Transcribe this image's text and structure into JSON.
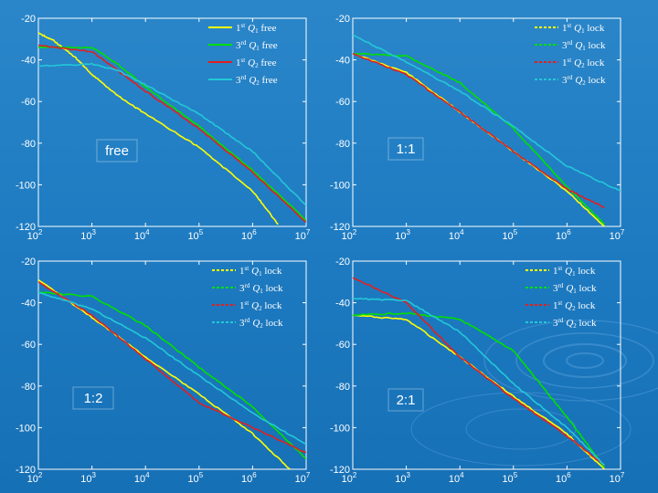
{
  "chart_data": [
    {
      "type": "line",
      "xscale": "log",
      "xlim": [
        100,
        10000000
      ],
      "ylim": [
        -120,
        -20
      ],
      "ytick_labels": [
        "-20",
        "-40",
        "-60",
        "-80",
        "-100",
        "-120"
      ],
      "yticks": [
        -20,
        -40,
        -60,
        -80,
        -100,
        -120
      ],
      "xticks": [
        {
          "base": "10",
          "exp": "2"
        },
        {
          "base": "10",
          "exp": "3"
        },
        {
          "base": "10",
          "exp": "4"
        },
        {
          "base": "10",
          "exp": "5"
        },
        {
          "base": "10",
          "exp": "6"
        },
        {
          "base": "10",
          "exp": "7"
        }
      ],
      "label": "free",
      "legend": [
        {
          "ord": "1",
          "sup": "st",
          "q": "Q",
          "sub": "1",
          "rest": " free",
          "color": "#ffff00",
          "dash": false
        },
        {
          "ord": "3",
          "sup": "rd",
          "q": "Q",
          "sub": "1",
          "rest": " free",
          "color": "#00e000",
          "dash": false
        },
        {
          "ord": "1",
          "sup": "st",
          "q": "Q",
          "sub": "2",
          "rest": " free",
          "color": "#e02020",
          "dash": false
        },
        {
          "ord": "3",
          "sup": "rd",
          "q": "Q",
          "sub": "2",
          "rest": " free",
          "color": "#22c8d8",
          "dash": false
        }
      ],
      "series": [
        {
          "name": "1st Q1 free",
          "color": "#ffff00",
          "x": [
            100,
            200,
            500,
            1000,
            3000,
            10000,
            100000,
            1000000,
            3000000
          ],
          "y": [
            -27,
            -31,
            -39,
            -47,
            -57,
            -66,
            -82,
            -103,
            -119
          ]
        },
        {
          "name": "3rd Q1 free",
          "color": "#00e000",
          "x": [
            100,
            1000,
            3000,
            10000,
            100000,
            1000000,
            10000000
          ],
          "y": [
            -34,
            -34,
            -42,
            -53,
            -72,
            -93,
            -117
          ]
        },
        {
          "name": "1st Q2 free",
          "color": "#e02020",
          "x": [
            100,
            1000,
            3000,
            10000,
            100000,
            1000000,
            10000000
          ],
          "y": [
            -33,
            -36,
            -45,
            -55,
            -73,
            -94,
            -118
          ]
        },
        {
          "name": "3rd Q2 free",
          "color": "#22c8d8",
          "x": [
            100,
            1000,
            3000,
            10000,
            100000,
            1000000,
            10000000
          ],
          "y": [
            -43,
            -42,
            -45,
            -52,
            -66,
            -84,
            -110
          ]
        }
      ]
    },
    {
      "type": "line",
      "xscale": "log",
      "xlim": [
        100,
        10000000
      ],
      "ylim": [
        -120,
        -20
      ],
      "ytick_labels": [
        "-20",
        "-40",
        "-60",
        "-80",
        "-100",
        "-120"
      ],
      "yticks": [
        -20,
        -40,
        -60,
        -80,
        -100,
        -120
      ],
      "xticks": [
        {
          "base": "10",
          "exp": "2"
        },
        {
          "base": "10",
          "exp": "3"
        },
        {
          "base": "10",
          "exp": "4"
        },
        {
          "base": "10",
          "exp": "5"
        },
        {
          "base": "10",
          "exp": "6"
        },
        {
          "base": "10",
          "exp": "7"
        }
      ],
      "label": "1:1",
      "legend": [
        {
          "ord": "1",
          "sup": "st",
          "q": "Q",
          "sub": "1",
          "rest": " lock",
          "color": "#ffff00",
          "dash": true
        },
        {
          "ord": "3",
          "sup": "rd",
          "q": "Q",
          "sub": "1",
          "rest": " lock",
          "color": "#00e000",
          "dash": true
        },
        {
          "ord": "1",
          "sup": "st",
          "q": "Q",
          "sub": "2",
          "rest": " lock",
          "color": "#e02020",
          "dash": true
        },
        {
          "ord": "3",
          "sup": "rd",
          "q": "Q",
          "sub": "2",
          "rest": " lock",
          "color": "#22c8d8",
          "dash": true
        }
      ],
      "series": [
        {
          "name": "1st Q1 lock",
          "color": "#ffff00",
          "x": [
            100,
            1000,
            10000,
            100000,
            1000000,
            5000000
          ],
          "y": [
            -37,
            -46,
            -65,
            -84,
            -103,
            -120
          ]
        },
        {
          "name": "3rd Q1 lock",
          "color": "#00e000",
          "x": [
            100,
            1000,
            10000,
            100000,
            1000000,
            5000000
          ],
          "y": [
            -37,
            -38,
            -51,
            -73,
            -101,
            -119
          ]
        },
        {
          "name": "1st Q2 lock",
          "color": "#e02020",
          "x": [
            100,
            1000,
            10000,
            100000,
            1000000,
            5000000
          ],
          "y": [
            -37,
            -47,
            -65,
            -84,
            -102,
            -111
          ]
        },
        {
          "name": "3rd Q2 lock",
          "color": "#22c8d8",
          "x": [
            100,
            1000,
            10000,
            100000,
            1000000,
            10000000
          ],
          "y": [
            -28,
            -41,
            -55,
            -72,
            -91,
            -103
          ]
        }
      ]
    },
    {
      "type": "line",
      "xscale": "log",
      "xlim": [
        100,
        10000000
      ],
      "ylim": [
        -120,
        -20
      ],
      "ytick_labels": [
        "-20",
        "-40",
        "-60",
        "-80",
        "-100",
        "-120"
      ],
      "yticks": [
        -20,
        -40,
        -60,
        -80,
        -100,
        -120
      ],
      "xticks": [
        {
          "base": "10",
          "exp": "2"
        },
        {
          "base": "10",
          "exp": "3"
        },
        {
          "base": "10",
          "exp": "4"
        },
        {
          "base": "10",
          "exp": "5"
        },
        {
          "base": "10",
          "exp": "6"
        },
        {
          "base": "10",
          "exp": "7"
        }
      ],
      "label": "1:2",
      "legend": [
        {
          "ord": "1",
          "sup": "st",
          "q": "Q",
          "sub": "1",
          "rest": " lock",
          "color": "#ffff00",
          "dash": true
        },
        {
          "ord": "3",
          "sup": "rd",
          "q": "Q",
          "sub": "1",
          "rest": " lock",
          "color": "#00e000",
          "dash": true
        },
        {
          "ord": "1",
          "sup": "st",
          "q": "Q",
          "sub": "2",
          "rest": " lock",
          "color": "#e02020",
          "dash": true
        },
        {
          "ord": "3",
          "sup": "rd",
          "q": "Q",
          "sub": "2",
          "rest": " lock",
          "color": "#22c8d8",
          "dash": true
        }
      ],
      "series": [
        {
          "name": "1st Q1 lock",
          "color": "#ffff00",
          "x": [
            100,
            1000,
            10000,
            100000,
            1000000,
            5000000
          ],
          "y": [
            -29,
            -47,
            -66,
            -84,
            -103,
            -120
          ]
        },
        {
          "name": "3rd Q1 lock",
          "color": "#00e000",
          "x": [
            100,
            1000,
            10000,
            100000,
            1000000,
            10000000
          ],
          "y": [
            -35,
            -37,
            -51,
            -71,
            -90,
            -115
          ]
        },
        {
          "name": "1st Q2 lock",
          "color": "#e02020",
          "x": [
            100,
            1000,
            10000,
            100000,
            1000000,
            10000000
          ],
          "y": [
            -30,
            -46,
            -67,
            -88,
            -100,
            -112
          ]
        },
        {
          "name": "3rd Q2 lock",
          "color": "#22c8d8",
          "x": [
            100,
            1000,
            10000,
            100000,
            1000000,
            10000000
          ],
          "y": [
            -35,
            -43,
            -57,
            -75,
            -93,
            -108
          ]
        }
      ]
    },
    {
      "type": "line",
      "xscale": "log",
      "xlim": [
        100,
        10000000
      ],
      "ylim": [
        -120,
        -20
      ],
      "ytick_labels": [
        "-20",
        "-40",
        "-60",
        "-80",
        "-100",
        "-120"
      ],
      "yticks": [
        -20,
        -40,
        -60,
        -80,
        -100,
        -120
      ],
      "xticks": [
        {
          "base": "10",
          "exp": "2"
        },
        {
          "base": "10",
          "exp": "3"
        },
        {
          "base": "10",
          "exp": "4"
        },
        {
          "base": "10",
          "exp": "5"
        },
        {
          "base": "10",
          "exp": "6"
        },
        {
          "base": "10",
          "exp": "7"
        }
      ],
      "label": "2:1",
      "legend": [
        {
          "ord": "1",
          "sup": "st",
          "q": "Q",
          "sub": "1",
          "rest": " lock",
          "color": "#ffff00",
          "dash": true
        },
        {
          "ord": "3",
          "sup": "rd",
          "q": "Q",
          "sub": "1",
          "rest": " lock",
          "color": "#00e000",
          "dash": true
        },
        {
          "ord": "1",
          "sup": "st",
          "q": "Q",
          "sub": "2",
          "rest": " lock",
          "color": "#e02020",
          "dash": true
        },
        {
          "ord": "3",
          "sup": "rd",
          "q": "Q",
          "sub": "2",
          "rest": " lock",
          "color": "#22c8d8",
          "dash": true
        }
      ],
      "series": [
        {
          "name": "1st Q1 lock",
          "color": "#ffff00",
          "x": [
            100,
            1000,
            10000,
            100000,
            1000000,
            5000000
          ],
          "y": [
            -46,
            -48,
            -66,
            -85,
            -103,
            -120
          ]
        },
        {
          "name": "3rd Q1 lock",
          "color": "#00e000",
          "x": [
            100,
            1000,
            10000,
            100000,
            1000000,
            5000000
          ],
          "y": [
            -46,
            -45,
            -48,
            -63,
            -95,
            -119
          ]
        },
        {
          "name": "1st Q2 lock",
          "color": "#e02020",
          "x": [
            100,
            1000,
            10000,
            100000,
            1000000,
            5000000
          ],
          "y": [
            -28,
            -40,
            -66,
            -86,
            -104,
            -118
          ]
        },
        {
          "name": "3rd Q2 lock",
          "color": "#22c8d8",
          "x": [
            100,
            1000,
            10000,
            100000,
            1000000,
            5000000
          ],
          "y": [
            -38,
            -39,
            -54,
            -79,
            -100,
            -118
          ]
        }
      ]
    }
  ]
}
